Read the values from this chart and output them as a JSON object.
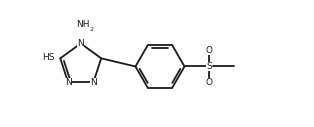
{
  "bg_color": "#ffffff",
  "line_color": "#1a1a1a",
  "line_width": 1.3,
  "font_size": 6.5,
  "fig_width": 3.14,
  "fig_height": 1.27,
  "dpi": 100,
  "xlim": [
    0.0,
    10.5
  ],
  "ylim": [
    0.5,
    4.2
  ]
}
